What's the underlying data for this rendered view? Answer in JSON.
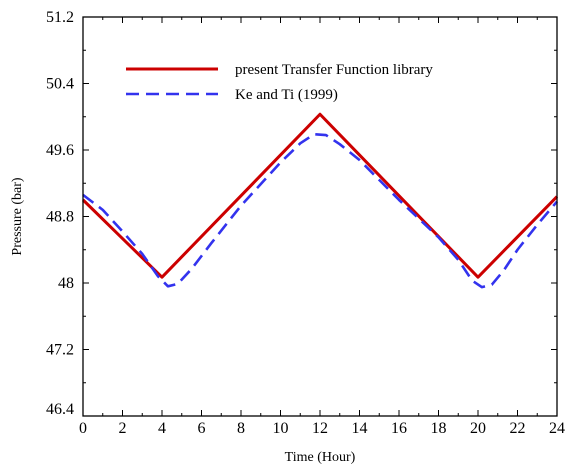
{
  "chart_data": {
    "type": "line",
    "title": "",
    "xlabel": "Time (Hour)",
    "ylabel": "Pressure (bar)",
    "xlim": [
      0,
      24
    ],
    "ylim": [
      46.4,
      51.2
    ],
    "x_ticks": [
      0,
      2,
      4,
      6,
      8,
      10,
      12,
      14,
      16,
      18,
      20,
      22,
      24
    ],
    "x_tick_labels": [
      "0",
      "2",
      "4",
      "6",
      "8",
      "10",
      "12",
      "14",
      "16",
      "18",
      "20",
      "22",
      "24"
    ],
    "y_ticks": [
      46.4,
      47.2,
      48,
      48.8,
      49.6,
      50.4,
      51.2
    ],
    "y_tick_labels": [
      "46.4",
      "47.2",
      "48",
      "48.8",
      "49.6",
      "50.4",
      "51.2"
    ],
    "grid": false,
    "legend_position": "top-center",
    "series": [
      {
        "name": "present Transfer Function library",
        "color": "#cc0000",
        "style": "solid",
        "x": [
          0,
          4,
          12,
          20,
          24
        ],
        "y": [
          49.0,
          48.07,
          50.03,
          48.07,
          49.04
        ]
      },
      {
        "name": "Ke and Ti (1999)",
        "color": "#3333ee",
        "style": "dashed",
        "x": [
          0,
          1,
          2,
          3,
          3.8,
          4.3,
          4.8,
          5.5,
          6.5,
          8,
          10,
          11,
          11.7,
          12.3,
          13,
          14,
          16,
          18,
          19,
          19.7,
          20.2,
          20.7,
          21.3,
          22,
          23,
          24
        ],
        "y": [
          49.06,
          48.88,
          48.62,
          48.35,
          48.08,
          47.96,
          47.99,
          48.17,
          48.48,
          48.93,
          49.45,
          49.68,
          49.79,
          49.78,
          49.67,
          49.48,
          49.0,
          48.55,
          48.28,
          48.03,
          47.95,
          47.98,
          48.15,
          48.4,
          48.7,
          48.98
        ]
      }
    ]
  }
}
